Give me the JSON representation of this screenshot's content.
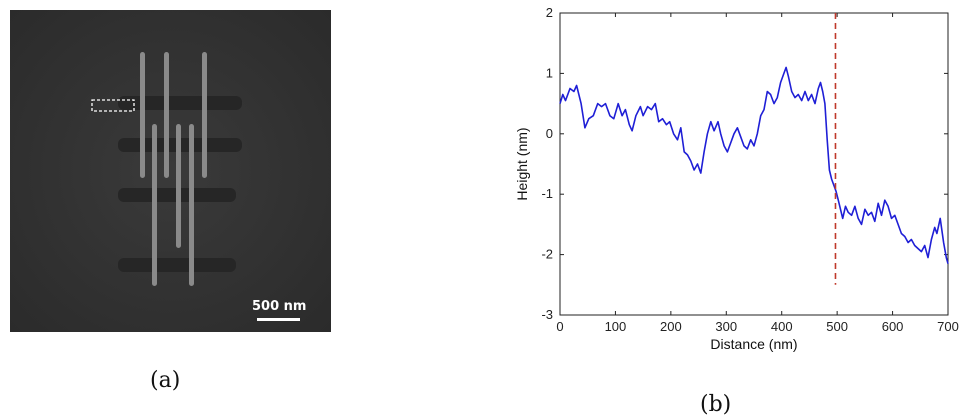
{
  "panels": {
    "a": {
      "label": "(a)",
      "scale_bar_text": "500 nm"
    },
    "b": {
      "label": "(b)"
    }
  },
  "chart_data": {
    "type": "line",
    "title": "",
    "xlabel": "Distance (nm)",
    "ylabel": "Height (nm)",
    "xlim": [
      0,
      700
    ],
    "ylim": [
      -3,
      2
    ],
    "xticks": [
      0,
      100,
      200,
      300,
      400,
      500,
      600,
      700
    ],
    "yticks": [
      -3,
      -2,
      -1,
      0,
      1,
      2
    ],
    "grid": false,
    "series": [
      {
        "color": "#1f1fd6",
        "points": [
          [
            0,
            0.5
          ],
          [
            5,
            0.65
          ],
          [
            10,
            0.55
          ],
          [
            18,
            0.75
          ],
          [
            25,
            0.7
          ],
          [
            30,
            0.8
          ],
          [
            38,
            0.5
          ],
          [
            45,
            0.1
          ],
          [
            52,
            0.25
          ],
          [
            60,
            0.3
          ],
          [
            68,
            0.5
          ],
          [
            75,
            0.45
          ],
          [
            82,
            0.5
          ],
          [
            90,
            0.3
          ],
          [
            97,
            0.25
          ],
          [
            105,
            0.5
          ],
          [
            112,
            0.3
          ],
          [
            118,
            0.4
          ],
          [
            125,
            0.15
          ],
          [
            130,
            0.05
          ],
          [
            137,
            0.3
          ],
          [
            145,
            0.45
          ],
          [
            150,
            0.3
          ],
          [
            158,
            0.45
          ],
          [
            165,
            0.4
          ],
          [
            172,
            0.5
          ],
          [
            178,
            0.2
          ],
          [
            185,
            0.25
          ],
          [
            192,
            0.15
          ],
          [
            198,
            0.2
          ],
          [
            205,
            0.0
          ],
          [
            212,
            -0.1
          ],
          [
            218,
            0.1
          ],
          [
            224,
            -0.3
          ],
          [
            230,
            -0.35
          ],
          [
            236,
            -0.45
          ],
          [
            242,
            -0.6
          ],
          [
            248,
            -0.5
          ],
          [
            254,
            -0.65
          ],
          [
            260,
            -0.3
          ],
          [
            266,
            0.0
          ],
          [
            272,
            0.2
          ],
          [
            278,
            0.05
          ],
          [
            285,
            0.2
          ],
          [
            290,
            0.0
          ],
          [
            296,
            -0.2
          ],
          [
            302,
            -0.3
          ],
          [
            308,
            -0.15
          ],
          [
            314,
            0.0
          ],
          [
            320,
            0.1
          ],
          [
            326,
            -0.05
          ],
          [
            332,
            -0.2
          ],
          [
            338,
            -0.25
          ],
          [
            344,
            -0.1
          ],
          [
            350,
            -0.2
          ],
          [
            356,
            0.0
          ],
          [
            362,
            0.3
          ],
          [
            368,
            0.4
          ],
          [
            374,
            0.7
          ],
          [
            380,
            0.65
          ],
          [
            386,
            0.5
          ],
          [
            392,
            0.6
          ],
          [
            398,
            0.85
          ],
          [
            404,
            1.0
          ],
          [
            408,
            1.1
          ],
          [
            412,
            0.95
          ],
          [
            418,
            0.7
          ],
          [
            424,
            0.6
          ],
          [
            430,
            0.65
          ],
          [
            436,
            0.55
          ],
          [
            442,
            0.7
          ],
          [
            448,
            0.55
          ],
          [
            454,
            0.65
          ],
          [
            460,
            0.5
          ],
          [
            466,
            0.75
          ],
          [
            470,
            0.85
          ],
          [
            474,
            0.7
          ],
          [
            478,
            0.5
          ],
          [
            482,
            -0.1
          ],
          [
            486,
            -0.6
          ],
          [
            490,
            -0.75
          ],
          [
            494,
            -0.85
          ],
          [
            498,
            -0.95
          ],
          [
            502,
            -1.1
          ],
          [
            506,
            -1.25
          ],
          [
            510,
            -1.4
          ],
          [
            515,
            -1.2
          ],
          [
            520,
            -1.3
          ],
          [
            526,
            -1.35
          ],
          [
            532,
            -1.2
          ],
          [
            538,
            -1.4
          ],
          [
            544,
            -1.5
          ],
          [
            550,
            -1.25
          ],
          [
            556,
            -1.35
          ],
          [
            562,
            -1.3
          ],
          [
            568,
            -1.45
          ],
          [
            574,
            -1.15
          ],
          [
            580,
            -1.35
          ],
          [
            586,
            -1.1
          ],
          [
            592,
            -1.2
          ],
          [
            598,
            -1.4
          ],
          [
            604,
            -1.35
          ],
          [
            610,
            -1.5
          ],
          [
            616,
            -1.65
          ],
          [
            622,
            -1.7
          ],
          [
            628,
            -1.8
          ],
          [
            634,
            -1.75
          ],
          [
            640,
            -1.85
          ],
          [
            646,
            -1.9
          ],
          [
            652,
            -1.95
          ],
          [
            658,
            -1.85
          ],
          [
            664,
            -2.05
          ],
          [
            670,
            -1.75
          ],
          [
            676,
            -1.55
          ],
          [
            680,
            -1.65
          ],
          [
            686,
            -1.4
          ],
          [
            692,
            -1.8
          ],
          [
            697,
            -2.05
          ],
          [
            700,
            -2.15
          ]
        ]
      }
    ],
    "marker_line": {
      "x": 497,
      "y_from": -2.5,
      "y_to": 2.0,
      "color": "#c0392b",
      "style": "dashed"
    }
  }
}
